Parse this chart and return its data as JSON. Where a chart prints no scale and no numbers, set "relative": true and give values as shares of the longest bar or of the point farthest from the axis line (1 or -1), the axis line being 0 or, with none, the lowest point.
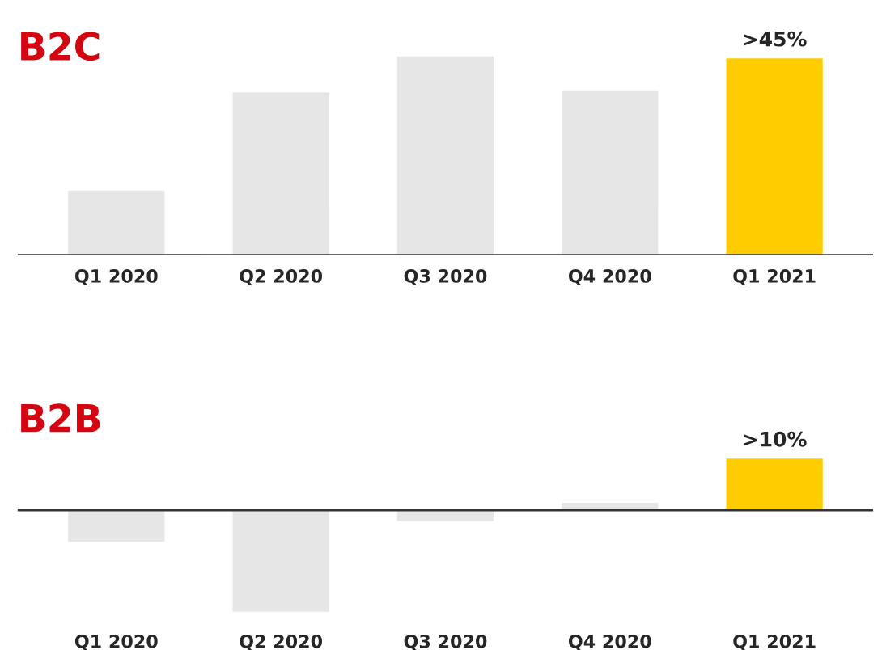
{
  "chart_data": [
    {
      "type": "bar",
      "title": "B2C",
      "relative": true,
      "categories": [
        "Q1 2020",
        "Q2 2020",
        "Q3 2020",
        "Q4 2020",
        "Q1 2021"
      ],
      "values": [
        0.33,
        0.82,
        1.0,
        0.83,
        0.99
      ],
      "colors": [
        "#e6e6e6",
        "#e6e6e6",
        "#e6e6e6",
        "#e6e6e6",
        "#ffcc00"
      ],
      "annotations": [
        {
          "text": ">45%",
          "x": "Q1 2021",
          "y": 0.99
        }
      ],
      "grid": false,
      "legend": false
    },
    {
      "type": "bar",
      "title": "B2B",
      "relative": true,
      "categories": [
        "Q1 2020",
        "Q2 2020",
        "Q3 2020",
        "Q4 2020",
        "Q1 2021"
      ],
      "values": [
        -0.32,
        -1.0,
        -0.12,
        0.08,
        0.51
      ],
      "colors": [
        "#e6e6e6",
        "#e6e6e6",
        "#e6e6e6",
        "#e6e6e6",
        "#ffcc00"
      ],
      "annotations": [
        {
          "text": ">10%",
          "x": "Q1 2021",
          "y": 0.51
        }
      ],
      "grid": false,
      "legend": false
    }
  ]
}
